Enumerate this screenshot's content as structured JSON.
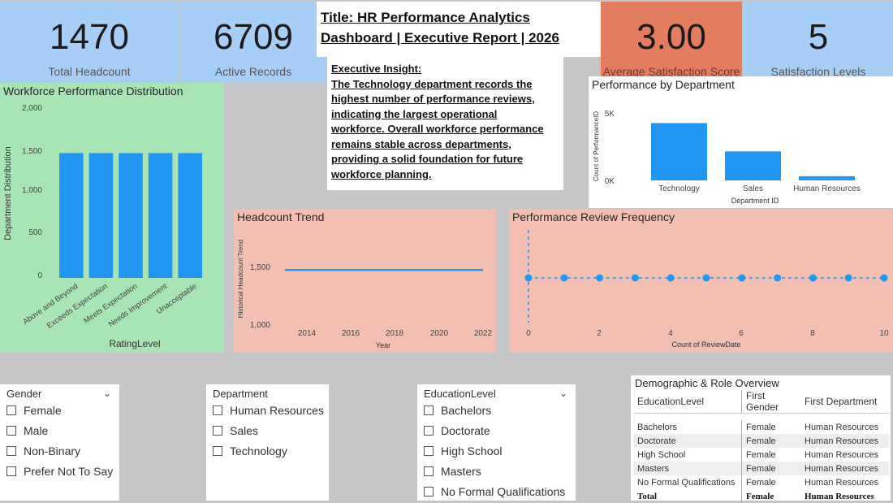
{
  "kpis": [
    {
      "value": "1470",
      "label": "Total Headcount"
    },
    {
      "value": "6709",
      "label": "Active Records"
    },
    {
      "value": "3.00",
      "label": "Average Satisfaction Score"
    },
    {
      "value": "5",
      "label": "Satisfaction Levels"
    }
  ],
  "title": {
    "line1": "Title: HR Performance Analytics",
    "line2": "Dashboard | Executive Report | 2026"
  },
  "insight": {
    "heading": "Executive Insight:",
    "lines": [
      "The Technology department records the",
      "highest number of performance reviews,",
      "indicating the largest operational",
      "workforce. Overall workforce performance",
      "remains stable across departments,",
      "providing a solid foundation for future",
      "workforce planning."
    ]
  },
  "colors": {
    "bar": "#2196f3",
    "kpi_blue": "#a7cff5",
    "kpi_orange": "#e47c5f",
    "green_panel": "#a8e4b4",
    "salmon_panel": "#f2c0b3"
  },
  "charts": {
    "dist": {
      "title": "Workforce Performance Distribution",
      "ylabel": "Department Distribution",
      "xlabel": "RatingLevel",
      "yticks": [
        "2,000",
        "1,500",
        "1,000",
        "500",
        "0"
      ]
    },
    "dept": {
      "title": "Performance by Department",
      "ylabel": "Count of PerformanceID",
      "xlabel": "Department ID",
      "yticks": [
        "5K",
        "0K"
      ]
    },
    "trend": {
      "title": "Headcount Trend",
      "ylabel": "Historical Headcount Trend",
      "xlabel": "Year",
      "yticks": [
        "1,500",
        "1,000"
      ],
      "xticks": [
        "2014",
        "2016",
        "2018",
        "2020",
        "2022"
      ]
    },
    "freq": {
      "title": "Performance Review Frequency",
      "xlabel": "Count of ReviewDate",
      "xticks": [
        "0",
        "2",
        "4",
        "6",
        "8",
        "10"
      ]
    }
  },
  "chart_data": [
    {
      "type": "bar",
      "title": "Workforce Performance Distribution",
      "xlabel": "RatingLevel",
      "ylabel": "Department Distribution",
      "categories": [
        "Above and Beyond",
        "Exceeds Expectation",
        "Meets Expectation",
        "Needs Improvement",
        "Unacceptable"
      ],
      "values": [
        1470,
        1470,
        1470,
        1470,
        1470
      ],
      "ylim": [
        0,
        2000
      ]
    },
    {
      "type": "bar",
      "title": "Performance by Department",
      "xlabel": "Department ID",
      "ylabel": "Count of PerformanceID",
      "categories": [
        "Technology",
        "Sales",
        "Human Resources"
      ],
      "values": [
        4250,
        2150,
        310
      ],
      "ylim": [
        0,
        5000
      ]
    },
    {
      "type": "line",
      "title": "Headcount Trend",
      "xlabel": "Year",
      "ylabel": "Historical Headcount Trend",
      "x": [
        2013,
        2022
      ],
      "values": [
        1470,
        1470
      ],
      "ylim": [
        1000,
        1600
      ]
    },
    {
      "type": "scatter",
      "title": "Performance Review Frequency",
      "xlabel": "Count of ReviewDate",
      "x": [
        0,
        1,
        2,
        3,
        4,
        5,
        6,
        7,
        8,
        9,
        10
      ],
      "xlim": [
        0,
        10
      ]
    }
  ],
  "slicers": {
    "gender": {
      "header": "Gender",
      "items": [
        "Female",
        "Male",
        "Non-Binary",
        "Prefer Not To Say"
      ]
    },
    "department": {
      "header": "Department",
      "items": [
        "Human Resources",
        "Sales",
        "Technology"
      ]
    },
    "education": {
      "header": "EducationLevel",
      "items": [
        "Bachelors",
        "Doctorate",
        "High School",
        "Masters",
        "No Formal Qualifications"
      ]
    }
  },
  "table": {
    "title": "Demographic & Role Overview",
    "columns": [
      "EducationLevel",
      "First Gender",
      "First Department"
    ],
    "rows": [
      [
        "Bachelors",
        "Female",
        "Human Resources"
      ],
      [
        "Doctorate",
        "Female",
        "Human Resources"
      ],
      [
        "High School",
        "Female",
        "Human Resources"
      ],
      [
        "Masters",
        "Female",
        "Human Resources"
      ],
      [
        "No Formal Qualifications",
        "Female",
        "Human Resources"
      ]
    ],
    "total": [
      "Total",
      "Female",
      "Human Resources"
    ]
  }
}
